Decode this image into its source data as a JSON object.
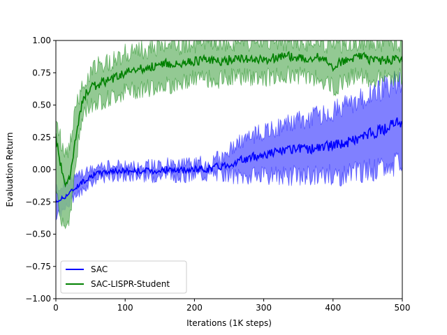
{
  "chart_data": {
    "type": "line",
    "title": "",
    "xlabel": "Iterations (1K steps)",
    "ylabel": "Evaluation Return",
    "xlim": [
      0,
      500
    ],
    "ylim": [
      -1.0,
      1.0
    ],
    "xticks": [
      0,
      100,
      200,
      300,
      400,
      500
    ],
    "yticks": [
      -1.0,
      -0.75,
      -0.5,
      -0.25,
      0.0,
      0.25,
      0.5,
      0.75,
      1.0
    ],
    "xtick_labels": [
      "0",
      "100",
      "200",
      "300",
      "400",
      "500"
    ],
    "ytick_labels": [
      "−1.00",
      "−0.75",
      "−0.50",
      "−0.25",
      "0.00",
      "0.25",
      "0.50",
      "0.75",
      "1.00"
    ],
    "grid": false,
    "legend_position": "lower-left",
    "series": [
      {
        "name": "SAC",
        "color": "#0000ff",
        "band_color": "#8080ff",
        "x": [
          0,
          10,
          20,
          30,
          40,
          50,
          60,
          70,
          80,
          90,
          100,
          120,
          140,
          160,
          180,
          200,
          220,
          240,
          260,
          280,
          300,
          320,
          340,
          360,
          380,
          400,
          420,
          440,
          460,
          480,
          500
        ],
        "mean": [
          -0.25,
          -0.22,
          -0.18,
          -0.13,
          -0.09,
          -0.05,
          -0.03,
          -0.02,
          -0.01,
          -0.01,
          -0.01,
          -0.01,
          -0.01,
          0.0,
          -0.01,
          0.0,
          0.01,
          0.03,
          0.06,
          0.09,
          0.12,
          0.14,
          0.15,
          0.16,
          0.17,
          0.19,
          0.21,
          0.25,
          0.29,
          0.33,
          0.38
        ],
        "lower": [
          -0.36,
          -0.32,
          -0.26,
          -0.2,
          -0.15,
          -0.1,
          -0.07,
          -0.06,
          -0.05,
          -0.05,
          -0.05,
          -0.05,
          -0.05,
          -0.04,
          -0.05,
          -0.04,
          -0.03,
          -0.03,
          -0.05,
          -0.05,
          -0.05,
          -0.05,
          -0.05,
          -0.05,
          -0.04,
          -0.04,
          -0.04,
          -0.02,
          0.0,
          0.02,
          0.05
        ],
        "upper": [
          -0.15,
          -0.12,
          -0.09,
          -0.06,
          -0.03,
          0.0,
          0.01,
          0.02,
          0.03,
          0.03,
          0.03,
          0.03,
          0.03,
          0.04,
          0.03,
          0.04,
          0.05,
          0.1,
          0.2,
          0.25,
          0.29,
          0.33,
          0.36,
          0.39,
          0.42,
          0.46,
          0.5,
          0.55,
          0.6,
          0.65,
          0.7
        ]
      },
      {
        "name": "SAC-LISPR-Student",
        "color": "#008000",
        "band_color": "#80c080",
        "x": [
          0,
          5,
          10,
          15,
          20,
          25,
          30,
          35,
          40,
          45,
          50,
          60,
          70,
          80,
          90,
          100,
          120,
          140,
          160,
          180,
          200,
          220,
          240,
          260,
          280,
          300,
          320,
          340,
          360,
          380,
          400,
          420,
          440,
          460,
          480,
          500
        ],
        "mean": [
          0.25,
          0.1,
          -0.05,
          -0.12,
          -0.05,
          0.1,
          0.3,
          0.45,
          0.55,
          0.6,
          0.63,
          0.66,
          0.68,
          0.7,
          0.73,
          0.75,
          0.78,
          0.8,
          0.82,
          0.82,
          0.84,
          0.85,
          0.84,
          0.86,
          0.86,
          0.85,
          0.87,
          0.88,
          0.86,
          0.87,
          0.8,
          0.86,
          0.88,
          0.84,
          0.85,
          0.86
        ],
        "lower": [
          -0.15,
          -0.3,
          -0.4,
          -0.45,
          -0.35,
          -0.15,
          0.1,
          0.3,
          0.42,
          0.48,
          0.5,
          0.52,
          0.54,
          0.55,
          0.58,
          0.6,
          0.62,
          0.64,
          0.66,
          0.66,
          0.7,
          0.7,
          0.7,
          0.72,
          0.72,
          0.71,
          0.72,
          0.74,
          0.72,
          0.72,
          0.63,
          0.7,
          0.74,
          0.69,
          0.71,
          0.72
        ],
        "upper": [
          0.4,
          0.3,
          0.15,
          0.1,
          0.2,
          0.35,
          0.5,
          0.6,
          0.68,
          0.72,
          0.76,
          0.8,
          0.82,
          0.84,
          0.87,
          0.9,
          0.92,
          0.94,
          0.96,
          0.96,
          0.97,
          0.98,
          0.97,
          0.98,
          0.98,
          0.98,
          0.99,
          0.99,
          0.98,
          0.99,
          0.95,
          0.98,
          0.99,
          0.97,
          0.98,
          0.98
        ]
      }
    ]
  }
}
